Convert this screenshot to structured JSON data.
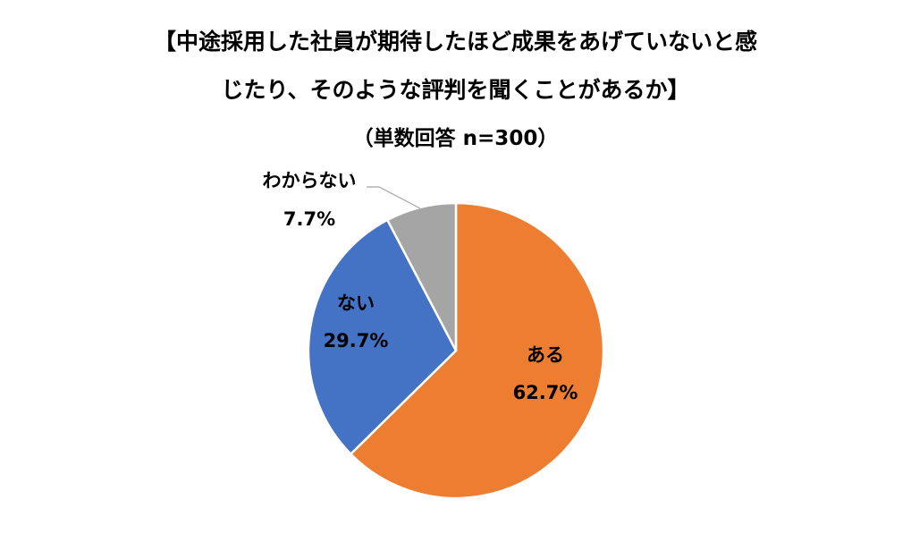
{
  "chart_data": {
    "type": "pie",
    "title": "【中途採用した社員が期待したほど成果をあげていないと感じたり、そのような評判を聞くことがあるか】",
    "title_lines": [
      "【中途採用した社員が期待したほど成果をあげていないと感",
      "じたり、そのような評判を聞くことがあるか】"
    ],
    "subtitle": "（単数回答 n=300）",
    "categories": [
      "ある",
      "ない",
      "わからない"
    ],
    "values": [
      62.7,
      29.7,
      7.7
    ],
    "value_labels": [
      "62.7%",
      "29.7%",
      "7.7%"
    ],
    "colors": [
      "#ED7D31",
      "#4472C4",
      "#A5A5A5"
    ],
    "start_angle": "12 o'clock",
    "direction": "clockwise",
    "legend": "none",
    "data_labels": "category and percentage on slices"
  }
}
